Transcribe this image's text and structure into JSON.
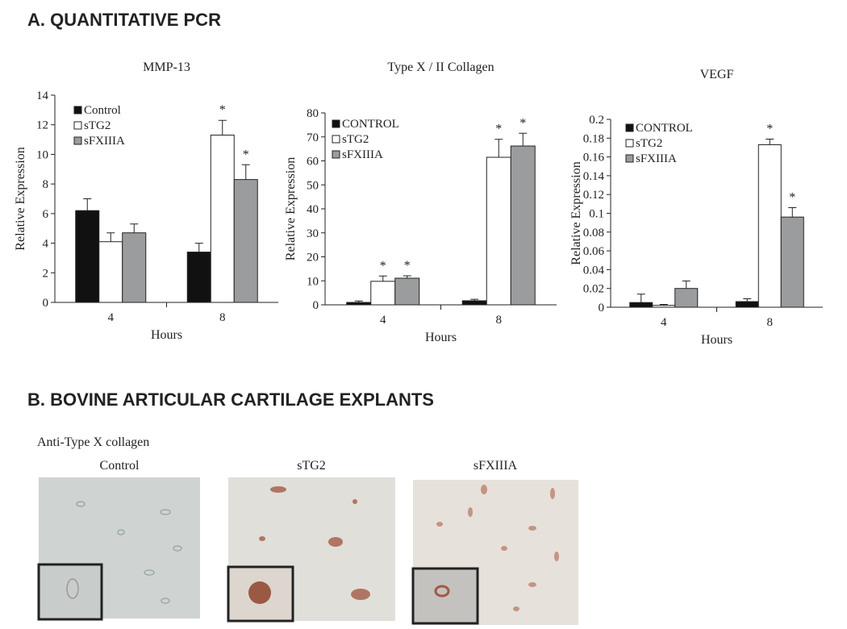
{
  "panel_a_title": "A. QUANTITATIVE PCR",
  "panel_b_title": "B. BOVINE ARTICULAR CARTILAGE EXPLANTS",
  "stain_label": "Anti-Type X collagen",
  "images": [
    {
      "label": "Control"
    },
    {
      "label": "sTG2"
    },
    {
      "label": "sFXIIIA"
    }
  ],
  "chart_data": [
    {
      "type": "bar",
      "title": "MMP-13",
      "x_label": "Hours",
      "y_label": "Relative Expression",
      "categories": [
        "4",
        "8"
      ],
      "ylim": [
        0,
        14
      ],
      "yticks": [
        0,
        2,
        4,
        6,
        8,
        10,
        12,
        14
      ],
      "series": [
        {
          "name": "Control",
          "color": "#111111",
          "values": [
            6.2,
            3.4
          ],
          "errors": [
            0.8,
            0.6
          ],
          "significance": [
            null,
            null
          ]
        },
        {
          "name": "sTG2",
          "color": "#ffffff",
          "values": [
            4.1,
            11.3
          ],
          "errors": [
            0.6,
            1.0
          ],
          "significance": [
            null,
            "*"
          ]
        },
        {
          "name": "sFXIIIA",
          "color": "#9a9c9e",
          "values": [
            4.7,
            8.3
          ],
          "errors": [
            0.6,
            1.0
          ],
          "significance": [
            null,
            "*"
          ]
        }
      ]
    },
    {
      "type": "bar",
      "title": "Type X / II Collagen",
      "x_label": "Hours",
      "y_label": "Relative Expression",
      "categories": [
        "4",
        "8"
      ],
      "ylim": [
        0,
        80
      ],
      "yticks": [
        0,
        10,
        20,
        30,
        40,
        50,
        60,
        70,
        80
      ],
      "series": [
        {
          "name": "CONTROL",
          "color": "#111111",
          "values": [
            1.0,
            1.7
          ],
          "errors": [
            0.6,
            0.6
          ],
          "significance": [
            null,
            null
          ]
        },
        {
          "name": "sTG2",
          "color": "#ffffff",
          "values": [
            9.8,
            61.5
          ],
          "errors": [
            2.2,
            7.5
          ],
          "significance": [
            "*",
            "*"
          ]
        },
        {
          "name": "sFXIIIA",
          "color": "#9a9c9e",
          "values": [
            11.1,
            66.2
          ],
          "errors": [
            1.0,
            5.3
          ],
          "significance": [
            "*",
            "*"
          ]
        }
      ]
    },
    {
      "type": "bar",
      "title": "VEGF",
      "x_label": "Hours",
      "y_label": "Relative Expression",
      "categories": [
        "4",
        "8"
      ],
      "ylim": [
        0,
        0.2
      ],
      "yticks": [
        0,
        0.02,
        0.04,
        0.06,
        0.08,
        0.1,
        0.12,
        0.14,
        0.16,
        0.18,
        0.2
      ],
      "series": [
        {
          "name": "CONTROL",
          "color": "#111111",
          "values": [
            0.005,
            0.006
          ],
          "errors": [
            0.009,
            0.003
          ],
          "significance": [
            null,
            null
          ]
        },
        {
          "name": "sTG2",
          "color": "#ffffff",
          "values": [
            0.002,
            0.173
          ],
          "errors": [
            0.001,
            0.006
          ],
          "significance": [
            null,
            "*"
          ]
        },
        {
          "name": "sFXIIIA",
          "color": "#9a9c9e",
          "values": [
            0.02,
            0.096
          ],
          "errors": [
            0.008,
            0.01
          ],
          "significance": [
            null,
            "*"
          ]
        }
      ]
    }
  ]
}
